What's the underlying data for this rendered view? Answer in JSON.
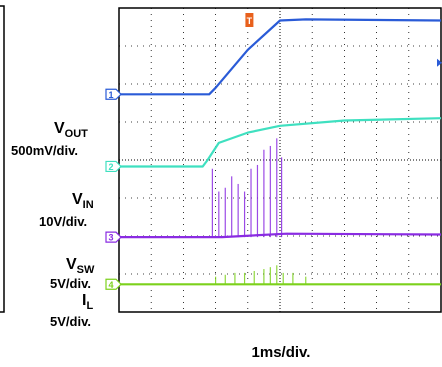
{
  "chart_data": {
    "type": "line",
    "title": "",
    "xlabel": "1ms/div.",
    "x_range_div": [
      0,
      10
    ],
    "y_range_div": [
      0,
      8
    ],
    "grid": true,
    "trigger_marker": "T",
    "channels": [
      {
        "id": "1",
        "name": "VOUT",
        "name_main": "V",
        "name_sub": "OUT",
        "scale": "500mV/div.",
        "color": "#2a5bd7",
        "baseline_div": 5.73,
        "points_div": [
          [
            0,
            5.73
          ],
          [
            2.8,
            5.73
          ],
          [
            3.0,
            5.9
          ],
          [
            4.0,
            6.9
          ],
          [
            5.0,
            7.67
          ],
          [
            5.8,
            7.7
          ],
          [
            10,
            7.67
          ]
        ]
      },
      {
        "id": "2",
        "name": "VIN",
        "name_main": "V",
        "name_sub": "IN",
        "scale": "10V/div.",
        "color": "#3fe0c0",
        "baseline_div": 3.83,
        "points_div": [
          [
            0,
            3.83
          ],
          [
            2.6,
            3.83
          ],
          [
            2.75,
            4.0
          ],
          [
            3.1,
            4.45
          ],
          [
            4.0,
            4.72
          ],
          [
            5.0,
            4.9
          ],
          [
            7.0,
            5.04
          ],
          [
            10,
            5.1
          ]
        ]
      },
      {
        "id": "3",
        "name": "VSW",
        "name_main": "V",
        "name_sub": "SW",
        "scale": "5V/div.",
        "color": "#8a2be2",
        "baseline_div": 1.97,
        "points_div": [
          [
            0,
            1.97
          ],
          [
            3.2,
            1.97
          ],
          [
            5.2,
            2.06
          ],
          [
            10,
            2.04
          ]
        ],
        "spikes_div": [
          [
            2.9,
            1.8
          ],
          [
            3.1,
            1.2
          ],
          [
            3.3,
            1.3
          ],
          [
            3.5,
            1.6
          ],
          [
            3.7,
            1.4
          ],
          [
            3.9,
            1.2
          ],
          [
            4.1,
            1.8
          ],
          [
            4.3,
            1.9
          ],
          [
            4.5,
            2.3
          ],
          [
            4.7,
            2.4
          ],
          [
            4.9,
            2.6
          ],
          [
            5.05,
            2.1
          ]
        ]
      },
      {
        "id": "4",
        "name": "IL",
        "name_main": "I",
        "name_sub": "L",
        "scale": "5V/div.",
        "color": "#7cd11c",
        "baseline_div": 0.73,
        "points_div": [
          [
            0,
            0.73
          ],
          [
            10,
            0.73
          ]
        ],
        "spikes_div": [
          [
            3.0,
            0.2
          ],
          [
            3.3,
            0.25
          ],
          [
            3.6,
            0.3
          ],
          [
            3.9,
            0.3
          ],
          [
            4.2,
            0.35
          ],
          [
            4.5,
            0.4
          ],
          [
            4.7,
            0.45
          ],
          [
            4.9,
            0.5
          ],
          [
            5.1,
            0.3
          ],
          [
            5.4,
            0.3
          ],
          [
            5.8,
            0.2
          ]
        ]
      }
    ]
  }
}
